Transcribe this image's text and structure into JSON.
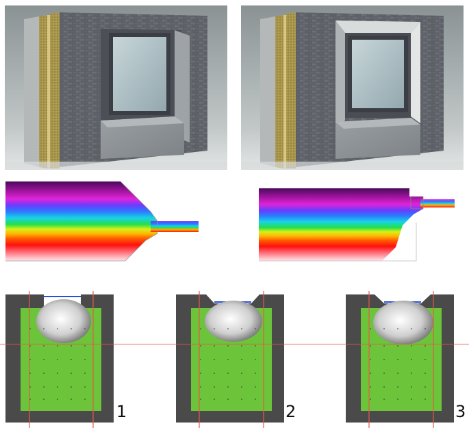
{
  "figure": {
    "renders": [
      {
        "id": "render-left",
        "variant": "recessed-window-with-sill-block"
      },
      {
        "id": "render-right",
        "variant": "window-with-angled-reveal"
      }
    ],
    "thermal_simulations": [
      {
        "id": "thermal-left",
        "variant": "chamfered-insulation"
      },
      {
        "id": "thermal-right",
        "variant": "stepped-insulation"
      }
    ],
    "sensor_panels": [
      {
        "label": "1",
        "notch": "straight"
      },
      {
        "label": "2",
        "notch": "chamfered"
      },
      {
        "label": "3",
        "notch": "chamfered"
      }
    ],
    "colors": {
      "brick": "#5e6268",
      "insulation": "#a8954c",
      "concrete": "#8c9296",
      "glass": "#a9bcc2",
      "frame": "#3b3f45",
      "panel_wall": "#4a4a4a",
      "panel_fill": "#6bc43a",
      "guide_line": "#e8584a",
      "notch_top": "#2a4fd8"
    }
  }
}
